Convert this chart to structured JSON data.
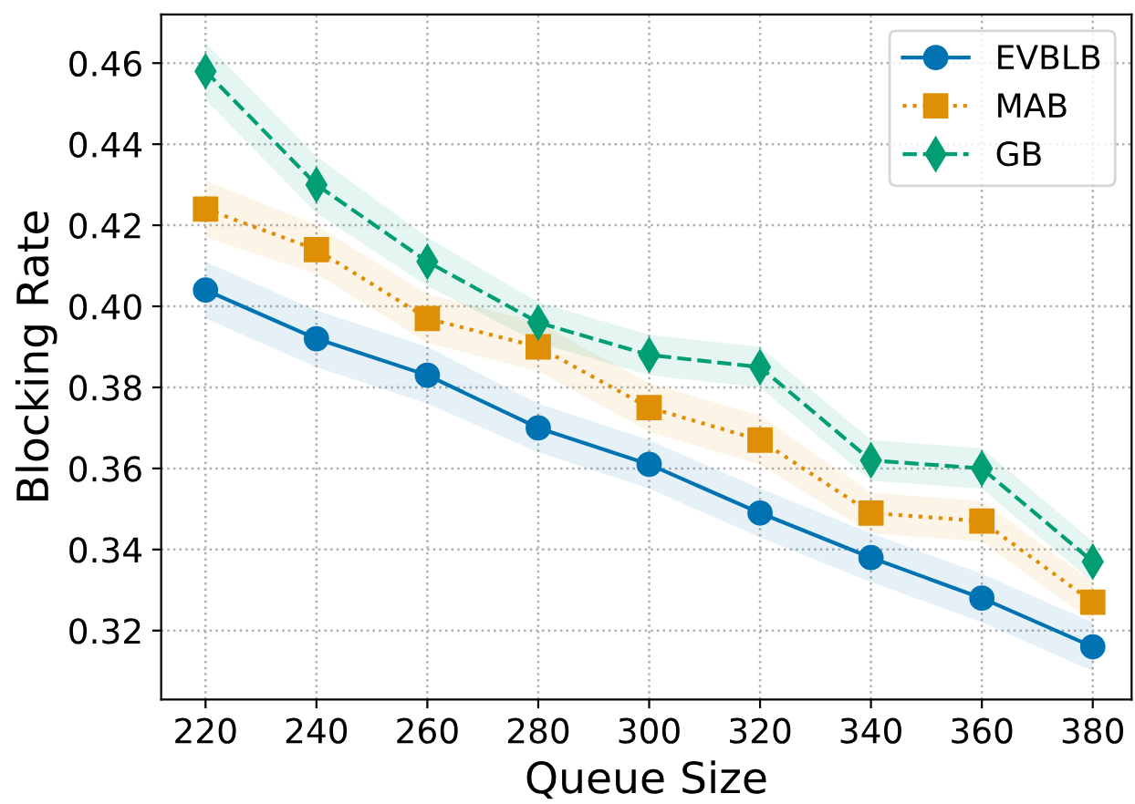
{
  "chart_data": {
    "type": "line",
    "xlabel": "Queue Size",
    "ylabel": "Blocking Rate",
    "x": [
      220,
      240,
      260,
      280,
      300,
      320,
      340,
      360,
      380
    ],
    "series": [
      {
        "name": "EVBLB",
        "color": "#0173b2",
        "marker": "circle",
        "line_style": "solid",
        "values": [
          0.404,
          0.392,
          0.383,
          0.37,
          0.361,
          0.349,
          0.338,
          0.328,
          0.316
        ],
        "lower": [
          0.397,
          0.385,
          0.376,
          0.364,
          0.355,
          0.343,
          0.332,
          0.322,
          0.31
        ],
        "upper": [
          0.411,
          0.399,
          0.39,
          0.376,
          0.367,
          0.355,
          0.344,
          0.334,
          0.322
        ]
      },
      {
        "name": "MAB",
        "color": "#de8f05",
        "marker": "square",
        "line_style": "dotted",
        "values": [
          0.424,
          0.414,
          0.397,
          0.39,
          0.375,
          0.367,
          0.349,
          0.347,
          0.327
        ],
        "lower": [
          0.417,
          0.408,
          0.391,
          0.384,
          0.369,
          0.361,
          0.344,
          0.342,
          0.322
        ],
        "upper": [
          0.431,
          0.42,
          0.403,
          0.396,
          0.381,
          0.373,
          0.354,
          0.352,
          0.332
        ]
      },
      {
        "name": "GB",
        "color": "#029e73",
        "marker": "diamond",
        "line_style": "dashed",
        "values": [
          0.458,
          0.43,
          0.411,
          0.396,
          0.388,
          0.385,
          0.362,
          0.36,
          0.337
        ],
        "lower": [
          0.451,
          0.423,
          0.405,
          0.391,
          0.383,
          0.38,
          0.357,
          0.355,
          0.332
        ],
        "upper": [
          0.465,
          0.437,
          0.417,
          0.401,
          0.393,
          0.39,
          0.367,
          0.365,
          0.342
        ]
      }
    ],
    "xlim": [
      212,
      387
    ],
    "ylim": [
      0.303,
      0.472
    ],
    "xticks": [
      220,
      240,
      260,
      280,
      300,
      320,
      340,
      360,
      380
    ],
    "yticks": [
      {
        "value": 0.32,
        "label": "0.32"
      },
      {
        "value": 0.34,
        "label": "0.34"
      },
      {
        "value": 0.36,
        "label": "0.36"
      },
      {
        "value": 0.38,
        "label": "0.38"
      },
      {
        "value": 0.4,
        "label": "0.40"
      },
      {
        "value": 0.42,
        "label": "0.42"
      },
      {
        "value": 0.44,
        "label": "0.44"
      },
      {
        "value": 0.46,
        "label": "0.46"
      }
    ],
    "grid": true,
    "legend": "top right"
  }
}
